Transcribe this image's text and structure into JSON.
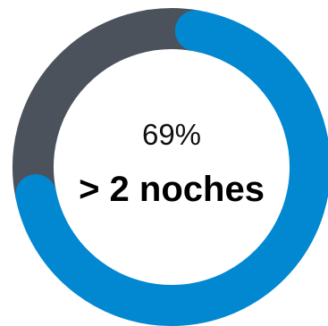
{
  "chart_data": {
    "type": "pie",
    "style": "donut",
    "percent_label": "69%",
    "center_label": "> 2 noches",
    "values": [
      69,
      31
    ],
    "colors": [
      "#0288d1",
      "#4b525c"
    ],
    "start": "top-right",
    "direction": "clockwise"
  }
}
